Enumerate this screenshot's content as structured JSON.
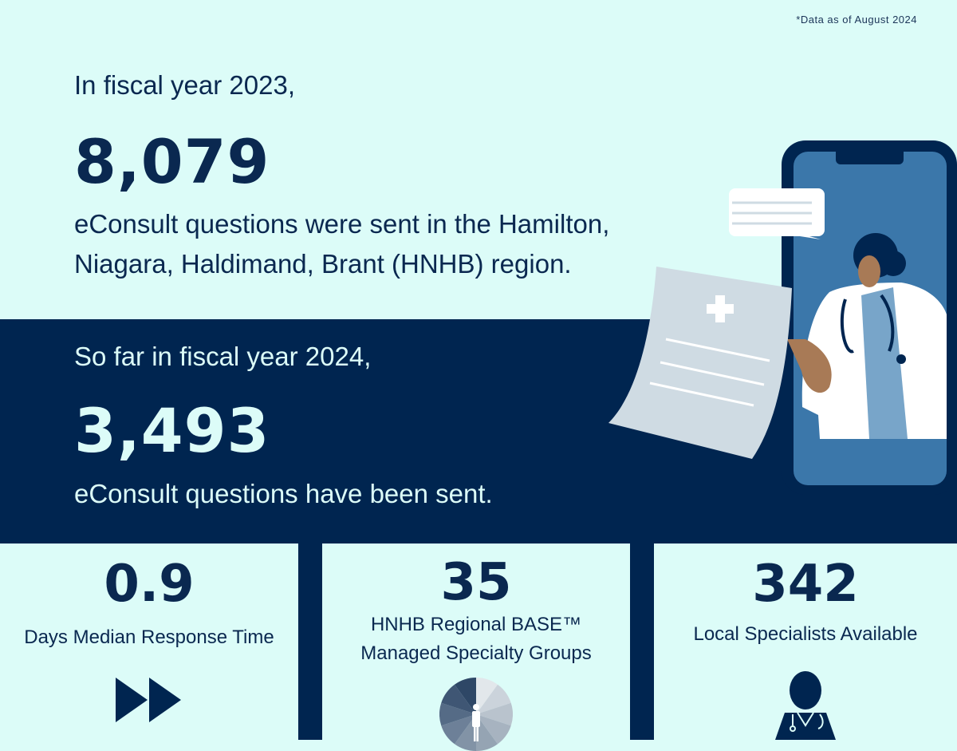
{
  "note": "*Data as of August 2024",
  "fy2023": {
    "intro": "In fiscal year 2023,",
    "count": "8,079",
    "desc_line1": "eConsult questions were sent in the Hamilton,",
    "desc_line2": "Niagara, Haldimand, Brant (HNHB) region."
  },
  "fy2024": {
    "intro": "So far in fiscal year 2024,",
    "count": "3,493",
    "desc": "eConsult questions have been sent."
  },
  "stats": [
    {
      "value": "0.9",
      "label": "Days Median Response Time",
      "icon": "fast-forward-icon"
    },
    {
      "value": "35",
      "label_line1": "HNHB Regional BASE™",
      "label_line2": "Managed Specialty Groups",
      "icon": "specialty-wheel-icon"
    },
    {
      "value": "342",
      "label": "Local Specialists Available",
      "icon": "doctor-icon"
    }
  ],
  "colors": {
    "background": "#dcfcf8",
    "navy": "#002550",
    "phone_screen": "#3b77aa"
  }
}
